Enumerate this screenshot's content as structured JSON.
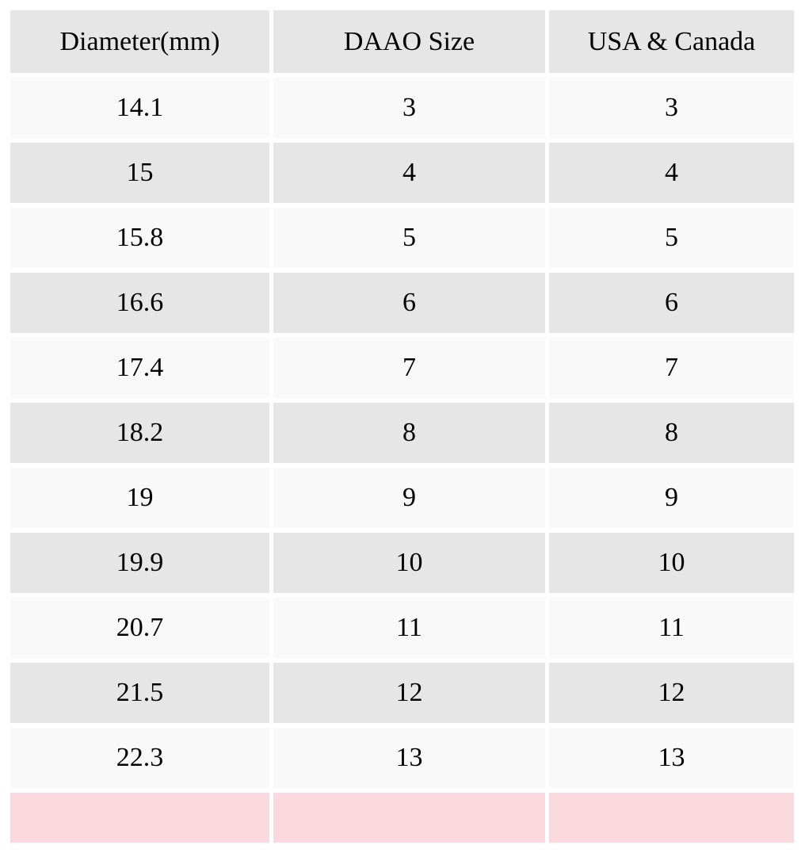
{
  "table": {
    "headers": [
      "Diameter(mm)",
      "DAAO Size",
      "USA & Canada"
    ],
    "rows": [
      [
        "14.1",
        "3",
        "3"
      ],
      [
        "15",
        "4",
        "4"
      ],
      [
        "15.8",
        "5",
        "5"
      ],
      [
        "16.6",
        "6",
        "6"
      ],
      [
        "17.4",
        "7",
        "7"
      ],
      [
        "18.2",
        "8",
        "8"
      ],
      [
        "19",
        "9",
        "9"
      ],
      [
        "19.9",
        "10",
        "10"
      ],
      [
        "20.7",
        "11",
        "11"
      ],
      [
        "21.5",
        "12",
        "12"
      ],
      [
        "22.3",
        "13",
        "13"
      ]
    ],
    "footer": [
      "",
      "",
      ""
    ]
  },
  "colors": {
    "header_bg": "#e6e6e6",
    "row_light_bg": "#f9f9f9",
    "row_dark_bg": "#e6e6e6",
    "footer_bg": "#f9d9dd"
  }
}
